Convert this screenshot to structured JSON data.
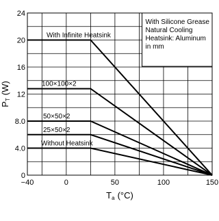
{
  "chart_data": {
    "type": "line",
    "xlabel": {
      "main": "T",
      "sub": "a",
      "unit": "(°C)"
    },
    "ylabel": {
      "main": "P",
      "sub": "T",
      "unit": "(W)"
    },
    "xlim": [
      -40,
      150
    ],
    "ylim": [
      0,
      24
    ],
    "x_ticks": [
      -40,
      0,
      50,
      100,
      150
    ],
    "x_tick_labels": [
      "−40",
      "0",
      "50",
      "100",
      "150"
    ],
    "y_ticks": [
      0,
      4,
      8,
      12,
      16,
      20,
      24
    ],
    "y_tick_labels": [
      "0",
      "4.0",
      "8.0",
      "12",
      "16",
      "20",
      "24"
    ],
    "grid": true,
    "note": [
      "With Silicone Grease",
      "Natural Cooling",
      "Heatsink: Aluminum",
      "in mm"
    ],
    "series": [
      {
        "name": "With Infinite Heatsink",
        "x": [
          -40,
          25,
          150
        ],
        "y": [
          20,
          20,
          0
        ]
      },
      {
        "name": "100×100×2",
        "x": [
          -40,
          25,
          150
        ],
        "y": [
          12.8,
          12.8,
          0
        ]
      },
      {
        "name": "50×50×2",
        "x": [
          -40,
          25,
          150
        ],
        "y": [
          8,
          8,
          0
        ]
      },
      {
        "name": "25×50×2",
        "x": [
          -40,
          25,
          150
        ],
        "y": [
          6,
          6,
          0
        ]
      },
      {
        "name": "Without Heatsink",
        "x": [
          -40,
          25,
          150
        ],
        "y": [
          4,
          4,
          0
        ]
      }
    ]
  }
}
